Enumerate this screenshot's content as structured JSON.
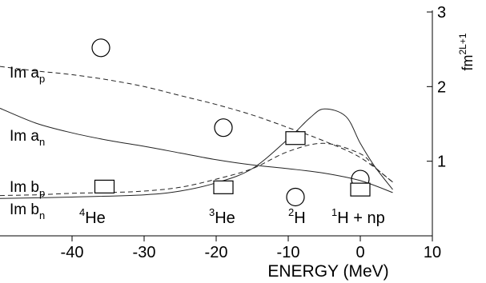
{
  "chart_data": {
    "type": "line",
    "xlabel": "ENERGY (MeV)",
    "ylabel_html": [
      "fm",
      "2L+1"
    ],
    "x_ticks": [
      -40,
      -30,
      -20,
      -10,
      0,
      10
    ],
    "y_ticks": [
      1,
      2,
      3
    ],
    "xlim": [
      -50,
      10
    ],
    "ylim": [
      0,
      3
    ],
    "grid": false,
    "y_axis_side": "right",
    "series": [
      {
        "name_base": "Im a",
        "name_sub": "p",
        "style": "dashed",
        "x": [
          -50,
          -45,
          -40,
          -35,
          -30,
          -25,
          -20,
          -15,
          -10,
          -5,
          0,
          4.5
        ],
        "y": [
          2.27,
          2.21,
          2.16,
          2.09,
          2.0,
          1.88,
          1.76,
          1.62,
          1.45,
          1.27,
          1.05,
          0.72
        ]
      },
      {
        "name_base": "Im a",
        "name_sub": "n",
        "style": "solid",
        "x": [
          -50,
          -45,
          -40,
          -35,
          -30,
          -25,
          -20,
          -15,
          -10,
          -5,
          0,
          4.5
        ],
        "y": [
          1.71,
          1.51,
          1.38,
          1.28,
          1.2,
          1.11,
          1.02,
          0.95,
          0.9,
          0.84,
          0.74,
          0.58
        ]
      },
      {
        "name_base": "Im b",
        "name_sub": "p",
        "style": "dashed",
        "x": [
          -50,
          -45,
          -40,
          -35,
          -30,
          -25,
          -20,
          -15,
          -10,
          -5,
          0,
          2,
          4.5
        ],
        "y": [
          0.54,
          0.55,
          0.57,
          0.58,
          0.6,
          0.65,
          0.76,
          0.9,
          1.13,
          1.24,
          1.1,
          0.92,
          0.72
        ]
      },
      {
        "name_base": "Im b",
        "name_sub": "n",
        "style": "solid",
        "x": [
          -50,
          -40,
          -30,
          -25,
          -20,
          -15,
          -10,
          -7,
          -5,
          -2,
          0,
          2,
          4.5
        ],
        "y": [
          0.5,
          0.52,
          0.55,
          0.6,
          0.71,
          0.9,
          1.3,
          1.58,
          1.7,
          1.6,
          1.24,
          0.93,
          0.62
        ]
      }
    ],
    "circles": [
      {
        "x": -36,
        "y": 2.52
      },
      {
        "x": -19,
        "y": 1.45
      },
      {
        "x": -9,
        "y": 0.52
      },
      {
        "x": 0,
        "y": 0.76
      }
    ],
    "squares": [
      {
        "x": -35.5,
        "y": 0.66
      },
      {
        "x": -19,
        "y": 0.65
      },
      {
        "x": -9,
        "y": 1.31
      },
      {
        "x": 0,
        "y": 0.62
      }
    ],
    "annotations": [
      {
        "sup": "4",
        "base": "He",
        "x": -39
      },
      {
        "sup": "3",
        "base": "He",
        "x": -21
      },
      {
        "sup": "2",
        "base": "H",
        "x": -10
      },
      {
        "sup": "1",
        "base": "H + np",
        "x": -4
      }
    ]
  }
}
